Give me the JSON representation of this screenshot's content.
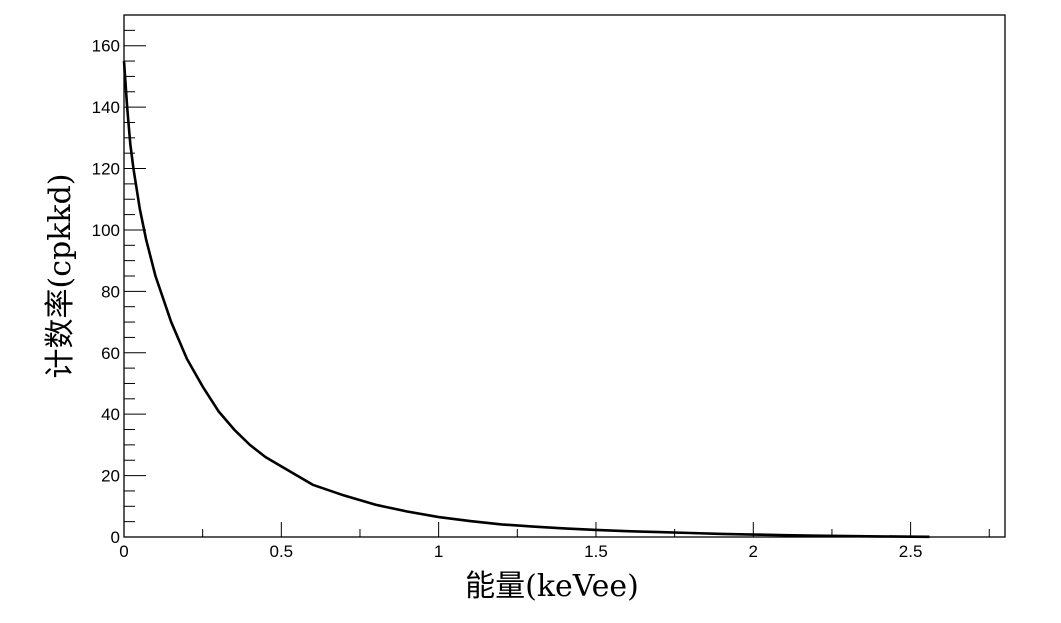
{
  "chart_data": {
    "type": "line",
    "title": "",
    "xlabel": "能量(keVee)",
    "ylabel": "计数率(cpkkd)",
    "xlim": [
      0,
      2.8
    ],
    "ylim": [
      0,
      170
    ],
    "x_ticks": [
      0,
      0.5,
      1,
      1.5,
      2,
      2.5
    ],
    "x_tick_labels": [
      "0",
      "0.5",
      "1",
      "1.5",
      "2",
      "2.5"
    ],
    "y_ticks": [
      0,
      20,
      40,
      60,
      80,
      100,
      120,
      140,
      160
    ],
    "y_tick_labels": [
      "0",
      "20",
      "40",
      "60",
      "80",
      "100",
      "120",
      "140",
      "160"
    ],
    "grid": false,
    "legend": "none",
    "line_color": "#000000",
    "series": [
      {
        "x": [
          0,
          0.01,
          0.02,
          0.03,
          0.05,
          0.07,
          0.1,
          0.15,
          0.2,
          0.25,
          0.3,
          0.35,
          0.4,
          0.45,
          0.5,
          0.6,
          0.7,
          0.8,
          0.9,
          1.0,
          1.1,
          1.2,
          1.3,
          1.4,
          1.5,
          1.6,
          1.7,
          1.8,
          1.9,
          2.0,
          2.1,
          2.2,
          2.3,
          2.4,
          2.5,
          2.56
        ],
        "y": [
          155,
          140,
          128,
          120,
          107,
          97,
          85,
          70,
          58,
          49,
          41,
          35,
          30,
          26,
          23,
          17,
          13.5,
          10.5,
          8.3,
          6.5,
          5.2,
          4.1,
          3.4,
          2.8,
          2.3,
          1.9,
          1.6,
          1.3,
          1.0,
          0.8,
          0.6,
          0.45,
          0.3,
          0.2,
          0.1,
          0.05
        ]
      }
    ]
  }
}
